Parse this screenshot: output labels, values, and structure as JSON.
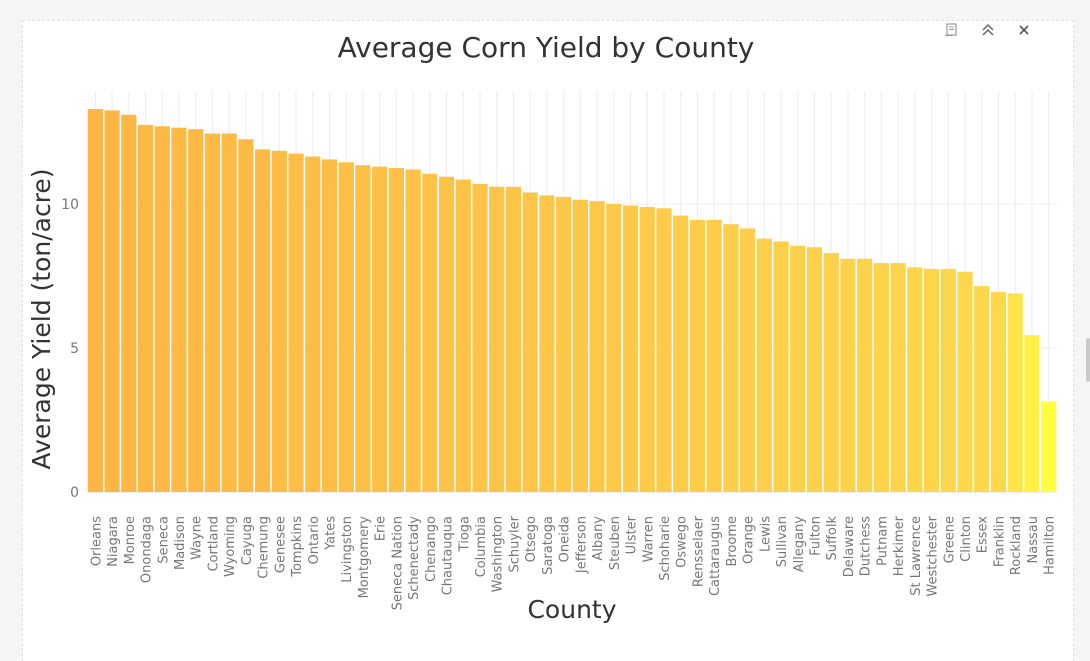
{
  "toolbar": {
    "icons": [
      "export-icon",
      "collapse-icon",
      "close-icon"
    ]
  },
  "colors": {
    "bar_start": "#fdb544",
    "bar_mid": "#fdd84c",
    "bar_end": "#ffff40",
    "grid": "#ececec",
    "axis_text": "#777777",
    "title_text": "#333333"
  },
  "chart_data": {
    "type": "bar",
    "title": "Average Corn Yield by County",
    "xlabel": "County",
    "ylabel": "Average Yield (ton/acre)",
    "ylim": [
      0,
      13.6
    ],
    "yticks": [
      0,
      5,
      10
    ],
    "grid": true,
    "categories": [
      "Orleans",
      "Niagara",
      "Monroe",
      "Onondaga",
      "Seneca",
      "Madison",
      "Wayne",
      "Cortland",
      "Wyoming",
      "Cayuga",
      "Chemung",
      "Genesee",
      "Tompkins",
      "Ontario",
      "Yates",
      "Livingston",
      "Montgomery",
      "Erie",
      "Seneca Nation",
      "Schenectady",
      "Chenango",
      "Chautauqua",
      "Tioga",
      "Columbia",
      "Washington",
      "Schuyler",
      "Otsego",
      "Saratoga",
      "Oneida",
      "Jefferson",
      "Albany",
      "Steuben",
      "Ulster",
      "Warren",
      "Schoharie",
      "Oswego",
      "Rensselaer",
      "Cattaraugus",
      "Broome",
      "Orange",
      "Lewis",
      "Sullivan",
      "Allegany",
      "Fulton",
      "Suffolk",
      "Delaware",
      "Dutchess",
      "Putnam",
      "Herkimer",
      "St Lawrence",
      "Westchester",
      "Greene",
      "Clinton",
      "Essex",
      "Franklin",
      "Rockland",
      "Nassau",
      "Hamilton"
    ],
    "values": [
      13.3,
      13.25,
      13.1,
      12.75,
      12.7,
      12.65,
      12.6,
      12.45,
      12.45,
      12.25,
      11.9,
      11.85,
      11.75,
      11.65,
      11.55,
      11.45,
      11.35,
      11.3,
      11.25,
      11.2,
      11.05,
      10.95,
      10.85,
      10.7,
      10.6,
      10.6,
      10.4,
      10.3,
      10.25,
      10.15,
      10.1,
      10.0,
      9.95,
      9.9,
      9.85,
      9.6,
      9.45,
      9.45,
      9.3,
      9.15,
      8.8,
      8.7,
      8.55,
      8.5,
      8.3,
      8.1,
      8.1,
      7.95,
      7.95,
      7.8,
      7.75,
      7.75,
      7.65,
      7.15,
      6.95,
      6.9,
      5.45,
      3.15
    ]
  }
}
